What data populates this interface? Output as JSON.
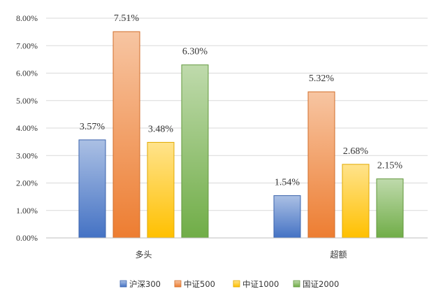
{
  "chart_data": {
    "type": "bar",
    "categories": [
      "多头",
      "超额"
    ],
    "series": [
      {
        "name": "沪深300",
        "values": [
          3.57,
          1.54
        ],
        "labels": [
          "3.57%",
          "1.54%"
        ],
        "color": "#4472C4"
      },
      {
        "name": "中证500",
        "values": [
          7.51,
          5.32
        ],
        "labels": [
          "7.51%",
          "5.32%"
        ],
        "color": "#ED7D31"
      },
      {
        "name": "中证1000",
        "values": [
          3.48,
          2.68
        ],
        "labels": [
          "3.48%",
          "2.68%"
        ],
        "color": "#FFC000"
      },
      {
        "name": "国证2000",
        "values": [
          6.3,
          2.15
        ],
        "labels": [
          "6.30%",
          "2.15%"
        ],
        "color": "#70AD47"
      }
    ],
    "yticks": [
      "0.00%",
      "1.00%",
      "2.00%",
      "3.00%",
      "4.00%",
      "5.00%",
      "6.00%",
      "7.00%",
      "8.00%"
    ],
    "ylim": [
      0,
      8
    ],
    "grid": true,
    "legend_position": "bottom"
  }
}
